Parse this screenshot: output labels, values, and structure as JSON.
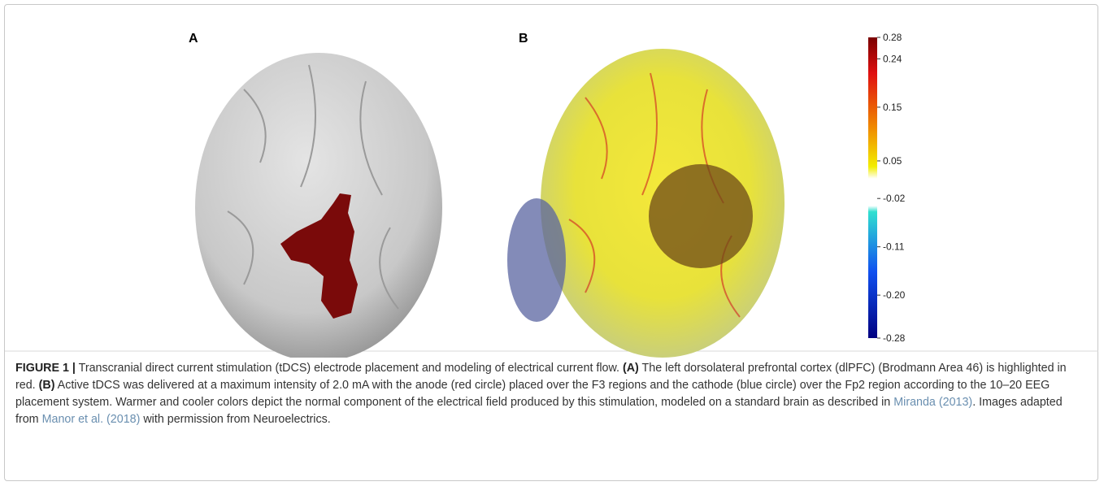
{
  "figure": {
    "panel_labels": [
      "A",
      "B"
    ],
    "colorbar": {
      "lim": [
        -0.28,
        0.28
      ],
      "ticks": [
        0.28,
        0.24,
        0.15,
        0.05,
        -0.02,
        -0.11,
        {
          "value": -0.2,
          "label": "-0.20"
        },
        -0.28
      ]
    },
    "caption": [
      "FIGURE 1 |",
      " Transcranial direct current stimulation (tDCS) electrode placement and modeling of electrical current flow. ",
      "(A)",
      " The left dorsolateral prefrontal cortex (dlPFC) (Brodmann Area 46) is highlighted in red. ",
      "(B)",
      " Active tDCS was delivered at a maximum intensity of 2.0 mA with the anode (red circle) placed over the F3 regions and the cathode (blue circle) over the Fp2 region according to the 10–20 EEG placement system. Warmer and cooler colors depict the normal component of the electrical field produced by this stimulation, modeled on a standard brain as described in ",
      "Miranda (2013)",
      ". Images adapted from ",
      "Manor et al. (2018)",
      " with permission from Neuroelectrics."
    ]
  }
}
